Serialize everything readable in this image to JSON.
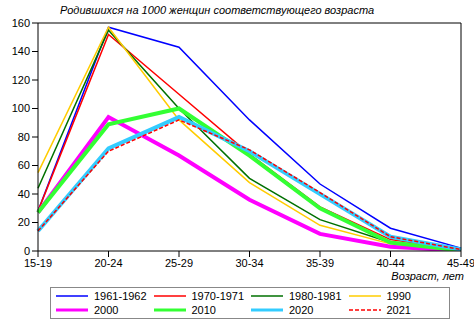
{
  "chart_data": {
    "type": "line",
    "title": "Родившихся на 1000 женщин соответствующего возраста",
    "x_label": "Возраст, лет",
    "categories": [
      "15-19",
      "20-24",
      "25-29",
      "30-34",
      "35-39",
      "40-44",
      "45-49"
    ],
    "ylim": [
      0,
      160
    ],
    "yticks": [
      0,
      20,
      40,
      60,
      80,
      100,
      120,
      140,
      160
    ],
    "grid": false,
    "legend": "bottom",
    "series": [
      {
        "name": "1961-1962",
        "color": "#0000ff",
        "values": [
          28,
          157,
          143,
          92,
          47,
          16,
          2
        ]
      },
      {
        "name": "1970-1971",
        "color": "#ff0000",
        "values": [
          28,
          152,
          110,
          68,
          31,
          8,
          1
        ]
      },
      {
        "name": "1980-1981",
        "color": "#007000",
        "values": [
          44,
          155,
          100,
          51,
          22,
          6,
          0.5
        ]
      },
      {
        "name": "1990",
        "color": "#ffcc00",
        "values": [
          55,
          157,
          92,
          48,
          18,
          5,
          0.3
        ]
      },
      {
        "name": "2000",
        "color": "#ff00ff",
        "values": [
          27,
          94,
          67,
          36,
          12,
          3,
          0.2
        ]
      },
      {
        "name": "2010",
        "color": "#33ff33",
        "values": [
          27,
          89,
          100,
          67,
          30,
          6,
          0.3
        ]
      },
      {
        "name": "2020",
        "color": "#33ccff",
        "values": [
          14,
          72,
          94,
          70,
          40,
          10,
          1
        ]
      },
      {
        "name": "2021",
        "color": "#ff0000",
        "values": [
          14,
          70,
          92,
          71,
          41,
          10,
          1
        ],
        "line_style": "dashed"
      }
    ]
  }
}
